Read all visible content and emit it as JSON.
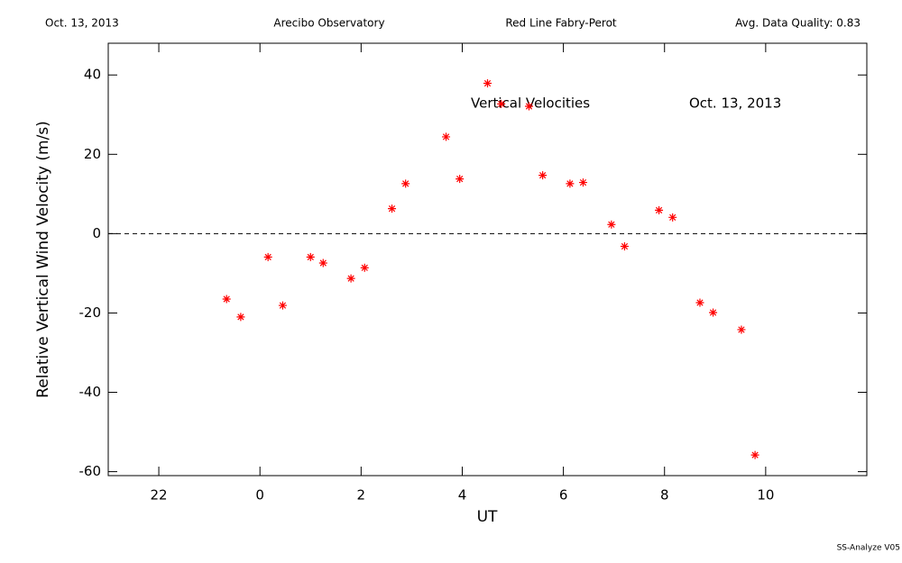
{
  "chart_data": {
    "type": "scatter",
    "header": [
      "Oct. 13, 2013",
      "Arecibo Observatory",
      "Red Line Fabry-Perot",
      "Avg. Data Quality: 0.83"
    ],
    "annotations": [
      "Vertical Velocities",
      "Oct. 13, 2013"
    ],
    "footer": "SS-Analyze V05",
    "xlabel": "UT",
    "ylabel": "Relative Vertical Wind Velocity (m/s)",
    "xlim": [
      -3,
      12
    ],
    "ylim": [
      -61,
      48
    ],
    "xticks": [
      {
        "value": -2,
        "label": "22"
      },
      0,
      2,
      4,
      6,
      8,
      10
    ],
    "yticks": [
      -60,
      -40,
      -20,
      0,
      20,
      40
    ],
    "reference_line": 0,
    "color": "#ff0000",
    "x": [
      -0.66,
      -0.38,
      0.16,
      0.45,
      1.0,
      1.25,
      1.8,
      2.07,
      2.61,
      2.88,
      3.68,
      3.95,
      4.5,
      4.77,
      5.32,
      5.59,
      6.13,
      6.39,
      6.95,
      7.21,
      7.89,
      8.16,
      8.7,
      8.96,
      9.52,
      9.79
    ],
    "values": [
      -16.5,
      -21.0,
      -5.9,
      -18.1,
      -5.9,
      -7.4,
      -11.3,
      -8.6,
      6.3,
      12.6,
      24.4,
      13.8,
      37.9,
      32.7,
      32.1,
      14.7,
      12.6,
      12.9,
      2.3,
      -3.2,
      5.9,
      4.1,
      -17.4,
      -19.9,
      -24.2,
      -55.8
    ]
  }
}
